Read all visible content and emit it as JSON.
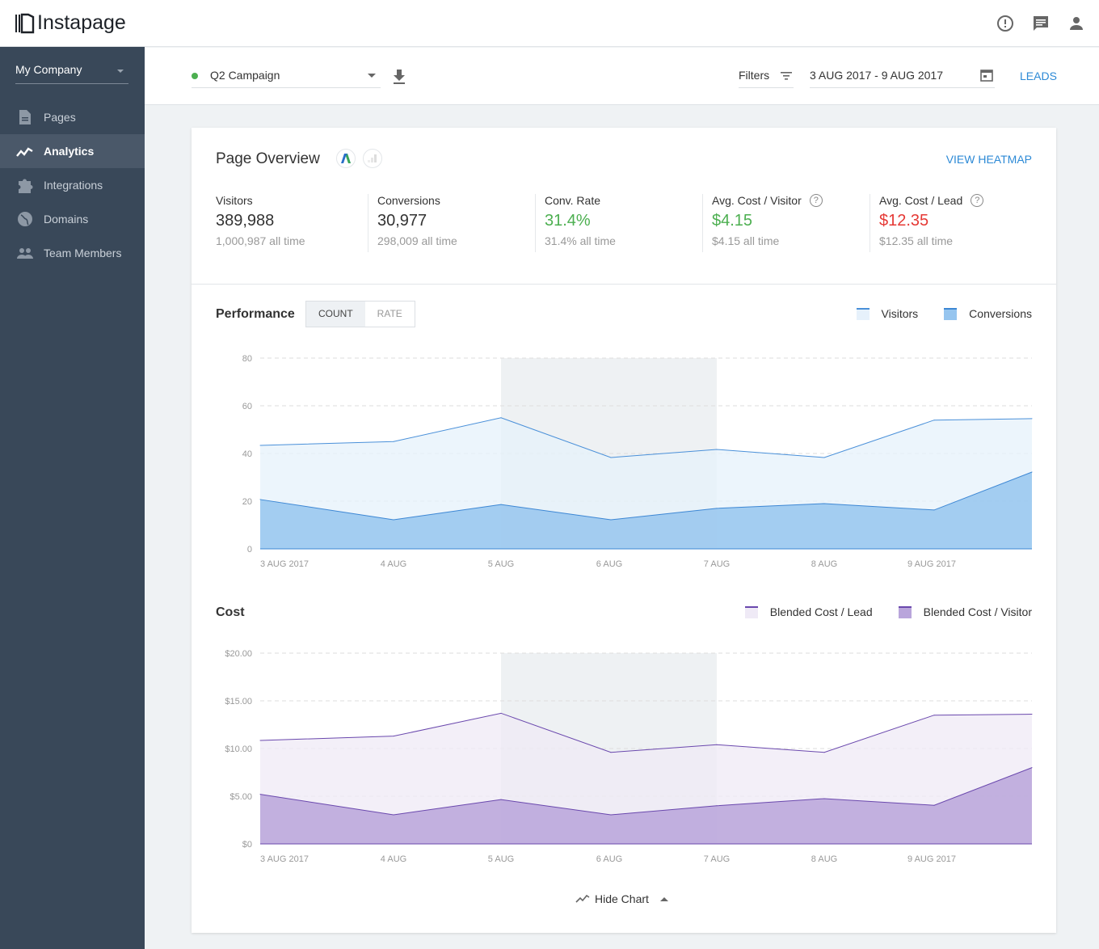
{
  "app": {
    "logo": "Instapage"
  },
  "top_icons": [
    "alert-icon",
    "chat-icon",
    "user-icon"
  ],
  "sidebar": {
    "company": "My Company",
    "items": [
      {
        "label": "Pages",
        "icon": "page-icon"
      },
      {
        "label": "Analytics",
        "icon": "analytics-icon",
        "active": true
      },
      {
        "label": "Integrations",
        "icon": "puzzle-icon"
      },
      {
        "label": "Domains",
        "icon": "globe-icon"
      },
      {
        "label": "Team Members",
        "icon": "people-icon"
      }
    ]
  },
  "toolbar": {
    "campaign": "Q2 Campaign",
    "campaign_status_color": "#4caf50",
    "filters": "Filters",
    "date_range": "3 AUG 2017 - 9 AUG 2017",
    "leads": "LEADS"
  },
  "overview": {
    "title": "Page Overview",
    "view_heatmap": "VIEW HEATMAP",
    "stats": [
      {
        "label": "Visitors",
        "value": "389,988",
        "sub": "1,000,987 all time",
        "color": "#333333"
      },
      {
        "label": "Conversions",
        "value": "30,977",
        "sub": "298,009 all time",
        "color": "#333333"
      },
      {
        "label": "Conv. Rate",
        "value": "31.4%",
        "sub": "31.4% all time",
        "color": "#4caf50"
      },
      {
        "label": "Avg. Cost / Visitor",
        "value": "$4.15",
        "sub": "$4.15  all time",
        "color": "#4caf50",
        "help": true
      },
      {
        "label": "Avg. Cost / Lead",
        "value": "$12.35",
        "sub": "$12.35  all time",
        "color": "#e53935",
        "help": true
      }
    ]
  },
  "performance": {
    "title": "Performance",
    "toggle": [
      "COUNT",
      "RATE"
    ],
    "selected": "COUNT"
  },
  "cost": {
    "title": "Cost"
  },
  "hide_chart": "Hide Chart",
  "chart_data": [
    {
      "type": "area",
      "name": "performance",
      "x_ticks": [
        "3 AUG 2017",
        "4 AUG",
        "5 AUG",
        "6 AUG",
        "7 AUG",
        "8 AUG",
        "9 AUG 2017"
      ],
      "y_ticks": [
        "0",
        "20",
        "40",
        "60",
        "80"
      ],
      "ylim": [
        0,
        80
      ],
      "grid": true,
      "legend": "top-right",
      "highlight": [
        "5 AUG",
        "7 AUG"
      ],
      "series": [
        {
          "name": "Visitors",
          "values": [
            43.4,
            45,
            55,
            38.3,
            41.7,
            38.3,
            54,
            54.6
          ],
          "line": "#4a90d9",
          "fill": "#e6f1fb"
        },
        {
          "name": "Conversions",
          "values": [
            20.7,
            12.2,
            18.6,
            12.2,
            17,
            19,
            16.3,
            32.2
          ],
          "line": "#3d87d4",
          "fill": "#96c5ef"
        }
      ]
    },
    {
      "type": "area",
      "name": "cost",
      "x_ticks": [
        "3 AUG 2017",
        "4 AUG",
        "5 AUG",
        "6 AUG",
        "7 AUG",
        "8 AUG",
        "9 AUG 2017"
      ],
      "y_ticks": [
        "$0",
        "$5.00",
        "$10.00",
        "$15.00",
        "$20.00"
      ],
      "ylim": [
        0,
        20
      ],
      "grid": true,
      "legend": "top-right",
      "highlight": [
        "5 AUG",
        "7 AUG"
      ],
      "series": [
        {
          "name": "Blended Cost / Lead",
          "values": [
            10.85,
            11.3,
            13.7,
            9.6,
            10.4,
            9.6,
            13.5,
            13.6
          ],
          "line": "#6a48ad",
          "fill": "#efeaf6"
        },
        {
          "name": "Blended Cost / Visitor",
          "values": [
            5.2,
            3.05,
            4.65,
            3.05,
            4.0,
            4.75,
            4.05,
            8.0
          ],
          "line": "#6a48ad",
          "fill": "#b9a5db"
        }
      ]
    }
  ]
}
